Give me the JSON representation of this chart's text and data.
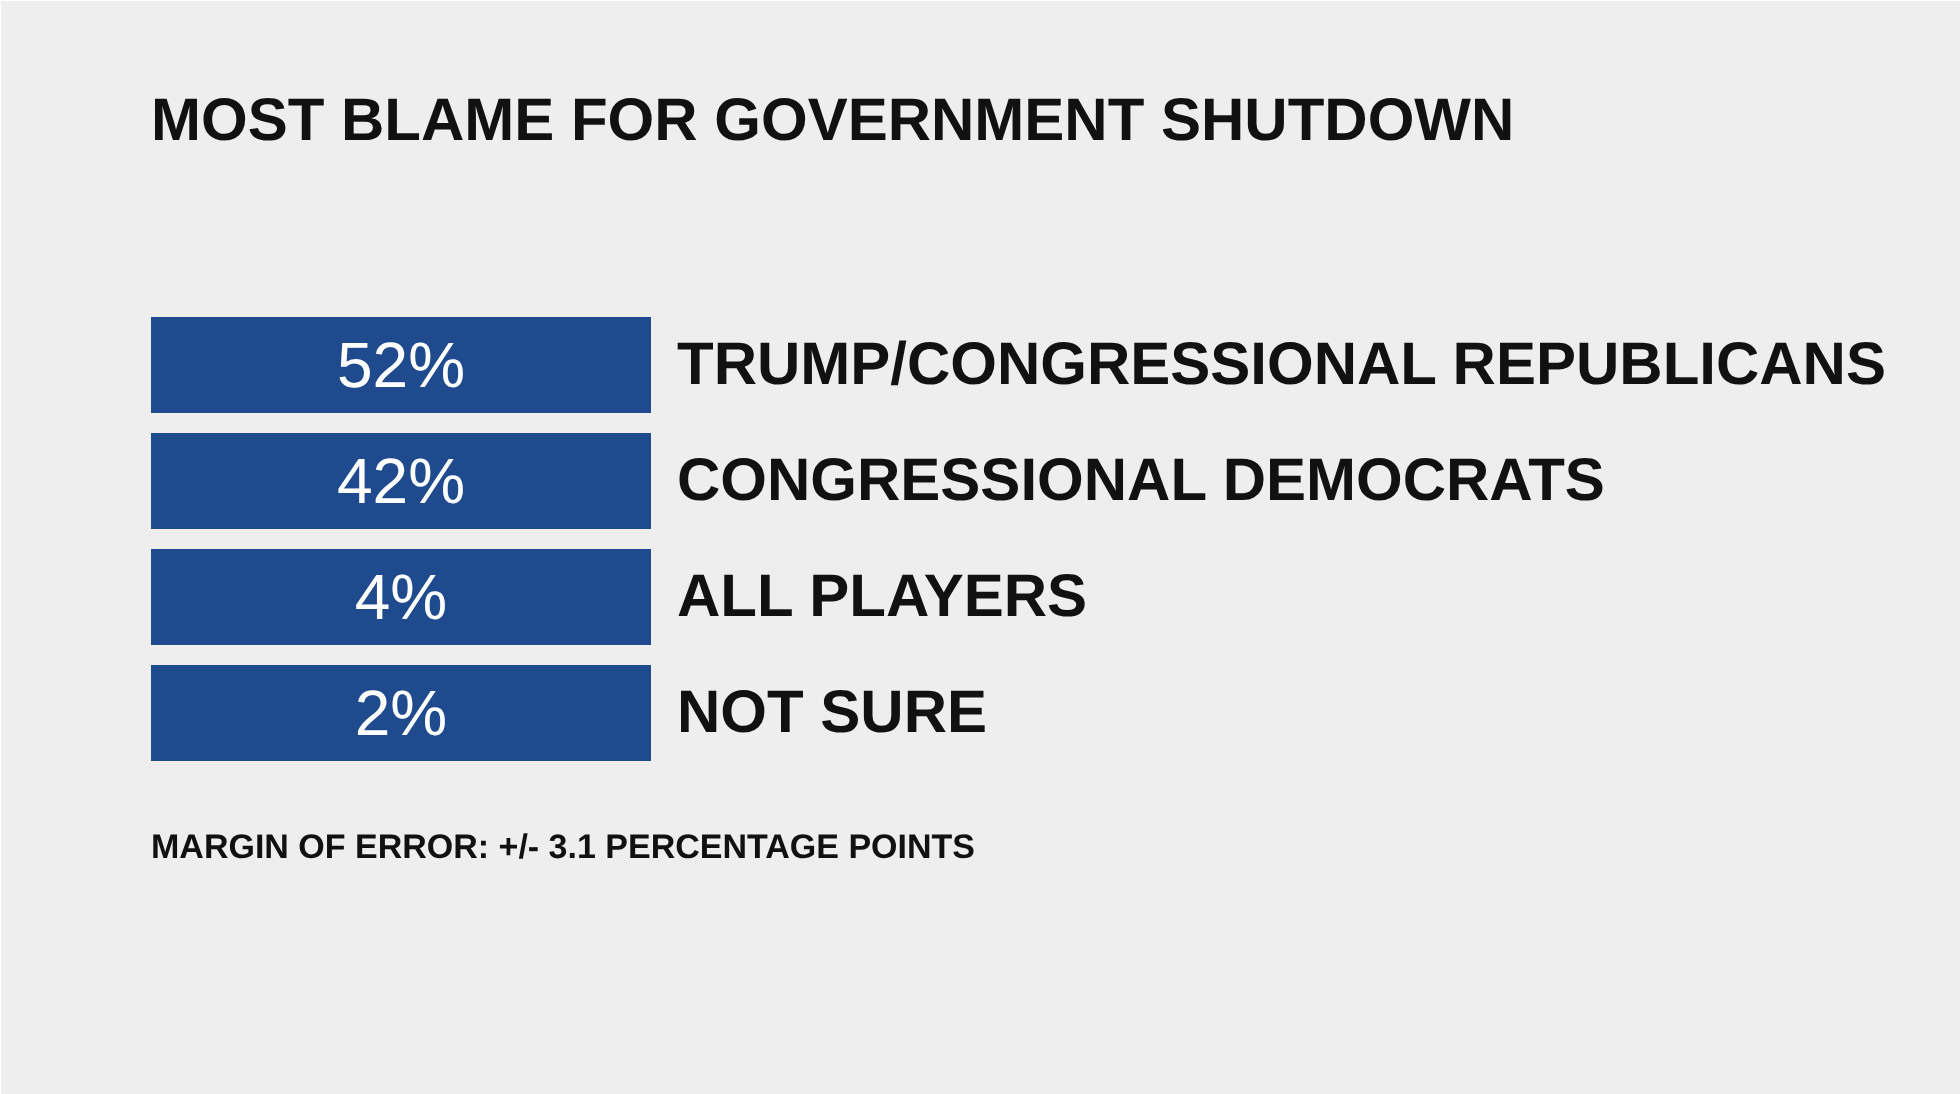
{
  "chart_data": {
    "type": "other",
    "title": "MOST BLAME FOR GOVERNMENT SHUTDOWN",
    "categories": [
      "TRUMP/CONGRESSIONAL REPUBLICANS",
      "CONGRESSIONAL DEMOCRATS",
      "ALL PLAYERS",
      "NOT SURE"
    ],
    "values": [
      52,
      42,
      4,
      2
    ],
    "value_labels": [
      "52%",
      "42%",
      "4%",
      "2%"
    ],
    "color": "#1f4b8e",
    "annotations": [
      "MARGIN OF ERROR: +/- 3.1 PERCENTAGE POINTS"
    ]
  }
}
